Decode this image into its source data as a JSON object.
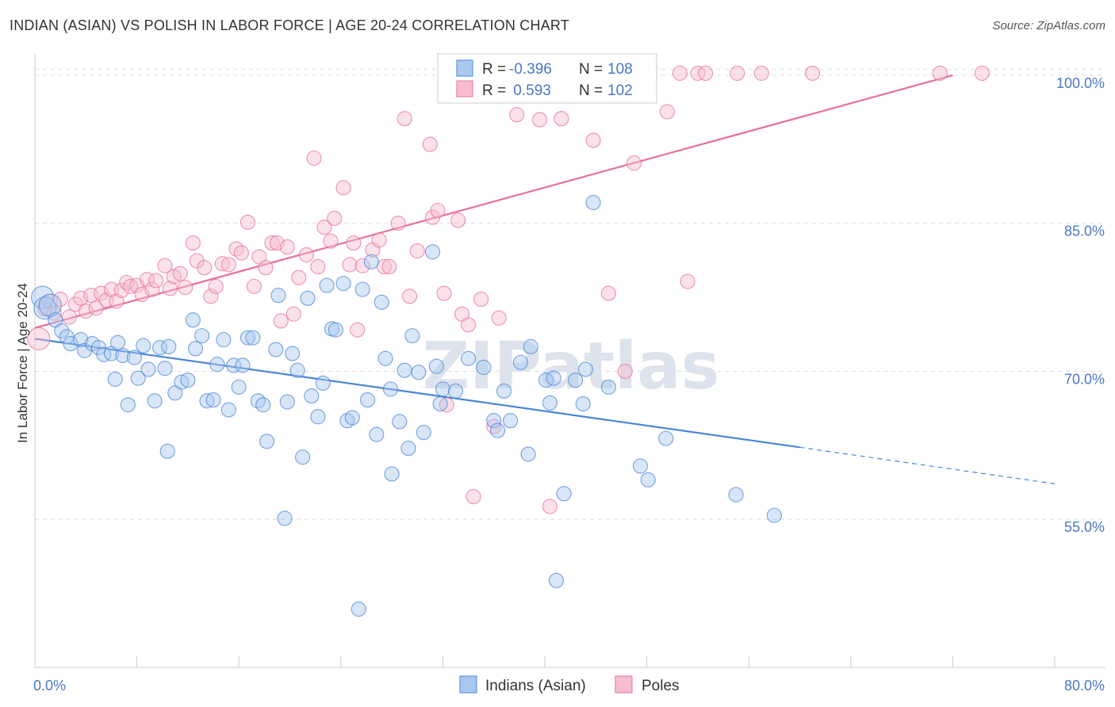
{
  "title": "INDIAN (ASIAN) VS POLISH IN LABOR FORCE | AGE 20-24 CORRELATION CHART",
  "source": "Source: ZipAtlas.com",
  "watermark": "ZIPatlas",
  "colors": {
    "indians": "#4a86d8",
    "indians_fill": "#a9c8f0",
    "poles": "#e8709a",
    "poles_fill": "#f6bdd0",
    "tick": "#4a76c6",
    "grid": "#dddddd"
  },
  "legend": {
    "rows": [
      {
        "r_label": "R = ",
        "r_value": "-0.396",
        "n_label": "N = ",
        "n_value": "108"
      },
      {
        "r_label": "R = ",
        "r_value": " 0.593",
        "n_label": "N = ",
        "n_value": "102"
      }
    ]
  },
  "bottom_legend": [
    "Indians (Asian)",
    "Poles"
  ],
  "chart_data": {
    "type": "scatter",
    "title": "INDIAN (ASIAN) VS POLISH IN LABOR FORCE | AGE 20-24 CORRELATION CHART",
    "xlabel": "",
    "ylabel": "In Labor Force | Age 20-24",
    "xlim": [
      0,
      80
    ],
    "ylim": [
      40,
      102
    ],
    "x_tick_labels": [
      "0.0%",
      "80.0%"
    ],
    "y_ticks": [
      55,
      70,
      85,
      100
    ],
    "y_tick_labels": [
      "55.0%",
      "70.0%",
      "85.0%",
      "100.0%"
    ],
    "grid": "horizontal dashed",
    "legend_position": "top-center",
    "series": [
      {
        "name": "Indians (Asian)",
        "trend": {
          "x0": 0,
          "y0": 73.3,
          "x1": 60,
          "y1": 62.3,
          "dashed_to_x": 80,
          "dashed_to_y": 58.6
        },
        "points": [
          [
            0.6,
            77.5
          ],
          [
            0.8,
            76.4
          ],
          [
            1.2,
            76.7
          ],
          [
            1.6,
            75.2
          ],
          [
            2.1,
            74.1
          ],
          [
            2.5,
            73.5
          ],
          [
            2.8,
            72.8
          ],
          [
            3.6,
            73.2
          ],
          [
            3.9,
            72.1
          ],
          [
            4.5,
            72.8
          ],
          [
            5,
            72.4
          ],
          [
            5.4,
            71.7
          ],
          [
            6,
            71.8
          ],
          [
            6.3,
            69.2
          ],
          [
            6.5,
            72.9
          ],
          [
            6.9,
            71.6
          ],
          [
            7.3,
            66.6
          ],
          [
            7.8,
            71.4
          ],
          [
            8.1,
            69.3
          ],
          [
            8.5,
            72.6
          ],
          [
            8.9,
            70.2
          ],
          [
            9.4,
            67
          ],
          [
            9.8,
            72.4
          ],
          [
            10.2,
            70.3
          ],
          [
            10.5,
            72.5
          ],
          [
            10.4,
            61.9
          ],
          [
            11,
            67.8
          ],
          [
            11.5,
            68.9
          ],
          [
            12,
            69.1
          ],
          [
            12.4,
            75.2
          ],
          [
            12.6,
            72.3
          ],
          [
            13.1,
            73.6
          ],
          [
            13.5,
            67
          ],
          [
            14,
            67.1
          ],
          [
            14.3,
            70.7
          ],
          [
            14.8,
            73.2
          ],
          [
            15.2,
            66.1
          ],
          [
            15.6,
            70.6
          ],
          [
            16,
            68.4
          ],
          [
            16.3,
            70.6
          ],
          [
            16.7,
            73.4
          ],
          [
            17.1,
            73.4
          ],
          [
            17.5,
            67
          ],
          [
            17.9,
            66.6
          ],
          [
            18.2,
            62.9
          ],
          [
            18.9,
            72.2
          ],
          [
            19.1,
            77.7
          ],
          [
            19.6,
            55.1
          ],
          [
            19.8,
            66.9
          ],
          [
            20.2,
            71.8
          ],
          [
            20.6,
            70.1
          ],
          [
            21,
            61.3
          ],
          [
            21.4,
            77.4
          ],
          [
            21.7,
            67.5
          ],
          [
            22.2,
            65.4
          ],
          [
            22.6,
            68.8
          ],
          [
            22.9,
            78.7
          ],
          [
            23.3,
            74.3
          ],
          [
            23.6,
            74.2
          ],
          [
            24.2,
            78.9
          ],
          [
            24.5,
            65
          ],
          [
            24.9,
            65.3
          ],
          [
            25.4,
            45.9
          ],
          [
            25.7,
            78.3
          ],
          [
            26.1,
            67.1
          ],
          [
            26.4,
            81.1
          ],
          [
            26.8,
            63.6
          ],
          [
            27.2,
            77
          ],
          [
            27.5,
            71.3
          ],
          [
            27.9,
            68.2
          ],
          [
            28,
            59.6
          ],
          [
            28.6,
            64.9
          ],
          [
            29,
            70.1
          ],
          [
            29.3,
            62.2
          ],
          [
            29.6,
            73.6
          ],
          [
            30.1,
            69.9
          ],
          [
            30.5,
            63.8
          ],
          [
            31.2,
            82.1
          ],
          [
            31.5,
            70.5
          ],
          [
            31.8,
            66.7
          ],
          [
            32,
            68.2
          ],
          [
            33,
            68
          ],
          [
            34,
            71.3
          ],
          [
            35.2,
            70.4
          ],
          [
            36,
            65
          ],
          [
            36.3,
            64
          ],
          [
            36.8,
            68
          ],
          [
            37.3,
            65
          ],
          [
            38.1,
            70.9
          ],
          [
            38.7,
            61.6
          ],
          [
            38.9,
            72.5
          ],
          [
            40.1,
            69.1
          ],
          [
            40.4,
            66.8
          ],
          [
            40.7,
            69.3
          ],
          [
            40.9,
            48.8
          ],
          [
            41.5,
            57.6
          ],
          [
            42.4,
            69.1
          ],
          [
            43,
            66.7
          ],
          [
            43.2,
            70.2
          ],
          [
            43.8,
            87.1
          ],
          [
            45,
            68.4
          ],
          [
            47.5,
            60.4
          ],
          [
            48.1,
            59
          ],
          [
            49.5,
            63.2
          ],
          [
            55,
            57.5
          ],
          [
            58,
            55.4
          ]
        ]
      },
      {
        "name": "Poles",
        "trend": {
          "x0": 0,
          "y0": 74.4,
          "x1": 72,
          "y1": 100,
          "dashed_to_x": 80,
          "dashed_to_y": 102.8
        },
        "points": [
          [
            0.3,
            73.3
          ],
          [
            0.8,
            76.3
          ],
          [
            1.2,
            77.1
          ],
          [
            1.5,
            75.9
          ],
          [
            2,
            77.3
          ],
          [
            2.7,
            75.5
          ],
          [
            3.2,
            76.8
          ],
          [
            3.6,
            77.4
          ],
          [
            4,
            76.1
          ],
          [
            4.4,
            77.7
          ],
          [
            4.8,
            76.4
          ],
          [
            5.2,
            77.9
          ],
          [
            5.6,
            77.2
          ],
          [
            6,
            78.3
          ],
          [
            6.4,
            77.1
          ],
          [
            6.8,
            78.2
          ],
          [
            7.2,
            79
          ],
          [
            7.5,
            78.6
          ],
          [
            8,
            78.7
          ],
          [
            8.4,
            77.8
          ],
          [
            8.8,
            79.3
          ],
          [
            9.2,
            78.3
          ],
          [
            9.5,
            79.2
          ],
          [
            10.2,
            80.7
          ],
          [
            10.6,
            78.4
          ],
          [
            10.9,
            79.6
          ],
          [
            11.4,
            79.9
          ],
          [
            11.8,
            78.5
          ],
          [
            12.4,
            83
          ],
          [
            12.7,
            81.2
          ],
          [
            13.3,
            80.5
          ],
          [
            13.8,
            77.6
          ],
          [
            14.2,
            78.6
          ],
          [
            14.7,
            80.9
          ],
          [
            15.2,
            80.8
          ],
          [
            15.8,
            82.4
          ],
          [
            16.2,
            82
          ],
          [
            16.7,
            85.1
          ],
          [
            17.2,
            78.6
          ],
          [
            17.6,
            81.6
          ],
          [
            18.1,
            80.5
          ],
          [
            18.6,
            83
          ],
          [
            19,
            83
          ],
          [
            19.3,
            75.1
          ],
          [
            19.8,
            82.6
          ],
          [
            20.3,
            75.8
          ],
          [
            20.7,
            79.5
          ],
          [
            21.3,
            81.8
          ],
          [
            21.9,
            91.6
          ],
          [
            22.2,
            80.6
          ],
          [
            22.7,
            84.6
          ],
          [
            23.2,
            83.2
          ],
          [
            23.5,
            85.5
          ],
          [
            24.2,
            88.6
          ],
          [
            24.7,
            80.8
          ],
          [
            25,
            83
          ],
          [
            25.3,
            74.2
          ],
          [
            25.7,
            80.7
          ],
          [
            26.5,
            82.3
          ],
          [
            27,
            83.3
          ],
          [
            27.4,
            80.6
          ],
          [
            27.8,
            80.6
          ],
          [
            28.5,
            85
          ],
          [
            29,
            95.6
          ],
          [
            29.4,
            77.6
          ],
          [
            30,
            82.2
          ],
          [
            31,
            93
          ],
          [
            31.2,
            85.6
          ],
          [
            31.6,
            86.3
          ],
          [
            32.1,
            77.9
          ],
          [
            32.3,
            66.6
          ],
          [
            33.2,
            85.3
          ],
          [
            33.5,
            75.8
          ],
          [
            34,
            74.7
          ],
          [
            34.4,
            57.3
          ],
          [
            35,
            77.3
          ],
          [
            35.4,
            100.2
          ],
          [
            36,
            64.4
          ],
          [
            36.4,
            75.4
          ],
          [
            37.6,
            100.2
          ],
          [
            37.8,
            96
          ],
          [
            39,
            100.2
          ],
          [
            39.6,
            95.5
          ],
          [
            40.4,
            56.3
          ],
          [
            41,
            100.2
          ],
          [
            41.3,
            95.6
          ],
          [
            43.8,
            93.4
          ],
          [
            45,
            77.9
          ],
          [
            46.3,
            70
          ],
          [
            47,
            91.1
          ],
          [
            48.2,
            100.2
          ],
          [
            49.6,
            96.3
          ],
          [
            50.6,
            100.2
          ],
          [
            51.2,
            79.1
          ],
          [
            52,
            100.2
          ],
          [
            52.6,
            100.2
          ],
          [
            55.1,
            100.2
          ],
          [
            57,
            100.2
          ],
          [
            61,
            100.2
          ],
          [
            71,
            100.2
          ],
          [
            74.3,
            100.2
          ]
        ]
      }
    ]
  }
}
